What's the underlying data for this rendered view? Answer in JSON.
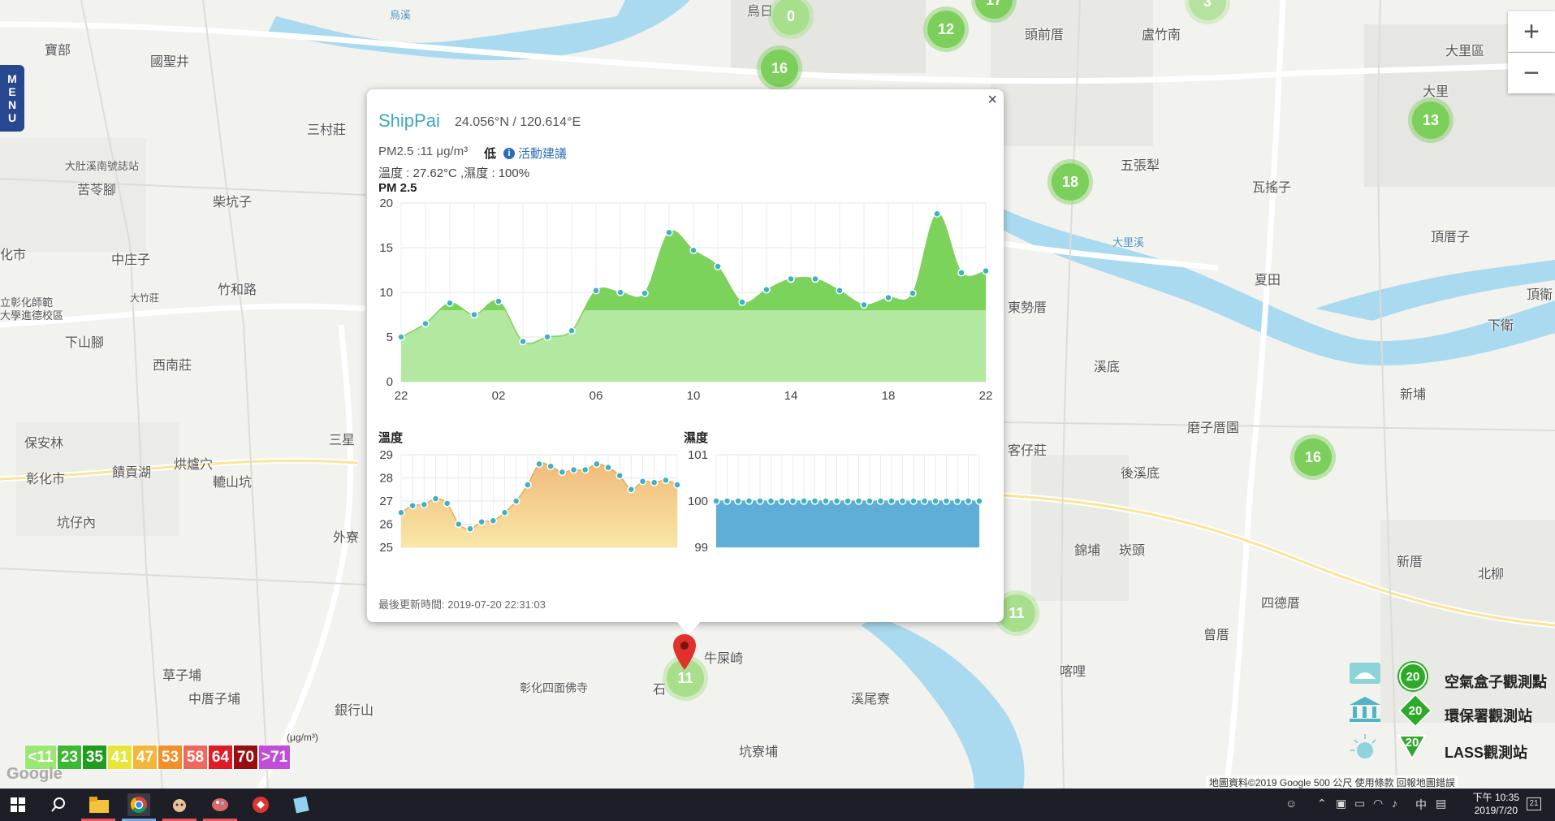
{
  "map": {
    "labels": [
      "寶部",
      "國聖井",
      "三村莊",
      "大肚溪南號誌站",
      "苦苓腳",
      "柴坑子",
      "化市",
      "中庄子",
      "大竹莊",
      "竹和路",
      "立彰化師範",
      "大學進德校區",
      "下山腳",
      "西南莊",
      "保安林",
      "彰化市",
      "饋貢湖",
      "烘爐穴",
      "轆山坑",
      "坑仔內",
      "三星",
      "外寮",
      "草子埔",
      "中厝子埔",
      "銀行山",
      "彰化四面佛寺",
      "牛屎崎",
      "石",
      "坑寮埔",
      "溪尾寮",
      "頭前厝",
      "盧竹南",
      "大里區",
      "大里",
      "五張犁",
      "瓦搖子",
      "頂厝子",
      "溪底",
      "磨子厝園",
      "後溪底",
      "錦埔",
      "崁頭",
      "四德厝",
      "新厝",
      "北柳",
      "新埔",
      "東勢厝",
      "客仔莊",
      "喀哩",
      "曾厝",
      "夏田",
      "下衛",
      "頂衛",
      "鳥日",
      "烏溪",
      "大里溪"
    ],
    "clusters": [
      "0",
      "12",
      "17",
      "16",
      "18",
      "13",
      "16",
      "11",
      "11",
      "3"
    ]
  },
  "menu": {
    "label": "MENU"
  },
  "zoom": {
    "in": "+",
    "out": "−"
  },
  "popup": {
    "close": "×",
    "site_name": "ShipPai",
    "coords": "24.056°N / 120.614°E",
    "pm_line": "PM2.5 :11 μg/m³",
    "pm_level": "低",
    "advice_icon": "i",
    "advice": "活動建議",
    "temp_humidity": "溫度 : 27.62°C ,濕度 : 100%",
    "pm_title": "PM 2.5",
    "temp_title": "溫度",
    "hum_title": "濕度",
    "updated": "最後更新時間: 2019-07-20 22:31:03"
  },
  "chart_data": [
    {
      "type": "area",
      "title": "PM 2.5",
      "x_tick_labels": [
        "22",
        "02",
        "06",
        "10",
        "14",
        "18",
        "22"
      ],
      "ylim": [
        0,
        20
      ],
      "y_ticks": [
        0,
        5,
        10,
        15,
        20
      ],
      "values": [
        5.0,
        6.5,
        8.8,
        7.5,
        9.0,
        4.5,
        5.0,
        5.7,
        10.2,
        10.0,
        9.9,
        16.7,
        14.7,
        12.9,
        8.9,
        10.3,
        11.5,
        11.5,
        10.2,
        8.6,
        9.4,
        9.9,
        18.8,
        12.2,
        12.4
      ],
      "colors": {
        "high": "#7bd35c",
        "low": "#b3e8a1",
        "point": "#3eb1c3"
      },
      "threshold": 8
    },
    {
      "type": "area",
      "title": "溫度",
      "ylim": [
        25,
        29
      ],
      "y_ticks": [
        25,
        26,
        27,
        28,
        29
      ],
      "values": [
        26.5,
        26.8,
        26.85,
        27.1,
        26.9,
        26.0,
        25.8,
        26.1,
        26.15,
        26.5,
        27.0,
        27.7,
        28.6,
        28.5,
        28.25,
        28.35,
        28.35,
        28.6,
        28.45,
        28.1,
        27.5,
        27.85,
        27.8,
        27.9,
        27.7
      ],
      "colors": {
        "top": "#f0bb7a",
        "bottom": "#f9e7a6",
        "point": "#3eb1c3"
      }
    },
    {
      "type": "area",
      "title": "濕度",
      "ylim": [
        99,
        101
      ],
      "y_ticks": [
        99,
        100,
        101
      ],
      "values": [
        100,
        100,
        100,
        100,
        100,
        100,
        100,
        100,
        100,
        100,
        100,
        100,
        100,
        100,
        100,
        100,
        100,
        100,
        100,
        100,
        100,
        100,
        100,
        100,
        100
      ],
      "colors": {
        "top": "#5eaed8",
        "bottom": "#5eaed8",
        "point": "#3eb1c3"
      }
    }
  ],
  "legend": {
    "unit": "(μg/m³)",
    "items": [
      {
        "label": "<11",
        "color": "#9ae873"
      },
      {
        "label": "23",
        "color": "#3cb832"
      },
      {
        "label": "35",
        "color": "#1f9e1e"
      },
      {
        "label": "41",
        "color": "#e8e43a"
      },
      {
        "label": "47",
        "color": "#f3b63b"
      },
      {
        "label": "53",
        "color": "#f28f28"
      },
      {
        "label": "58",
        "color": "#f0685b"
      },
      {
        "label": "64",
        "color": "#e01b25"
      },
      {
        "label": "70",
        "color": "#990f10"
      },
      {
        "label": ">71",
        "color": "#c04ed8"
      }
    ]
  },
  "station_types": {
    "airbox": {
      "label": "空氣盒子觀測點",
      "count": "20"
    },
    "epa": {
      "label": "環保署觀測站",
      "count": "20"
    },
    "lass": {
      "label": "LASS觀測站",
      "count": "20"
    }
  },
  "footer": {
    "google": "Google",
    "attribution": "地圖資料©2019 Google   500 公尺         使用條款    回報地圖錯誤"
  },
  "taskbar": {
    "time": "下午 10:35",
    "date": "2019/7/20",
    "ime": "中",
    "notifications": "21"
  }
}
